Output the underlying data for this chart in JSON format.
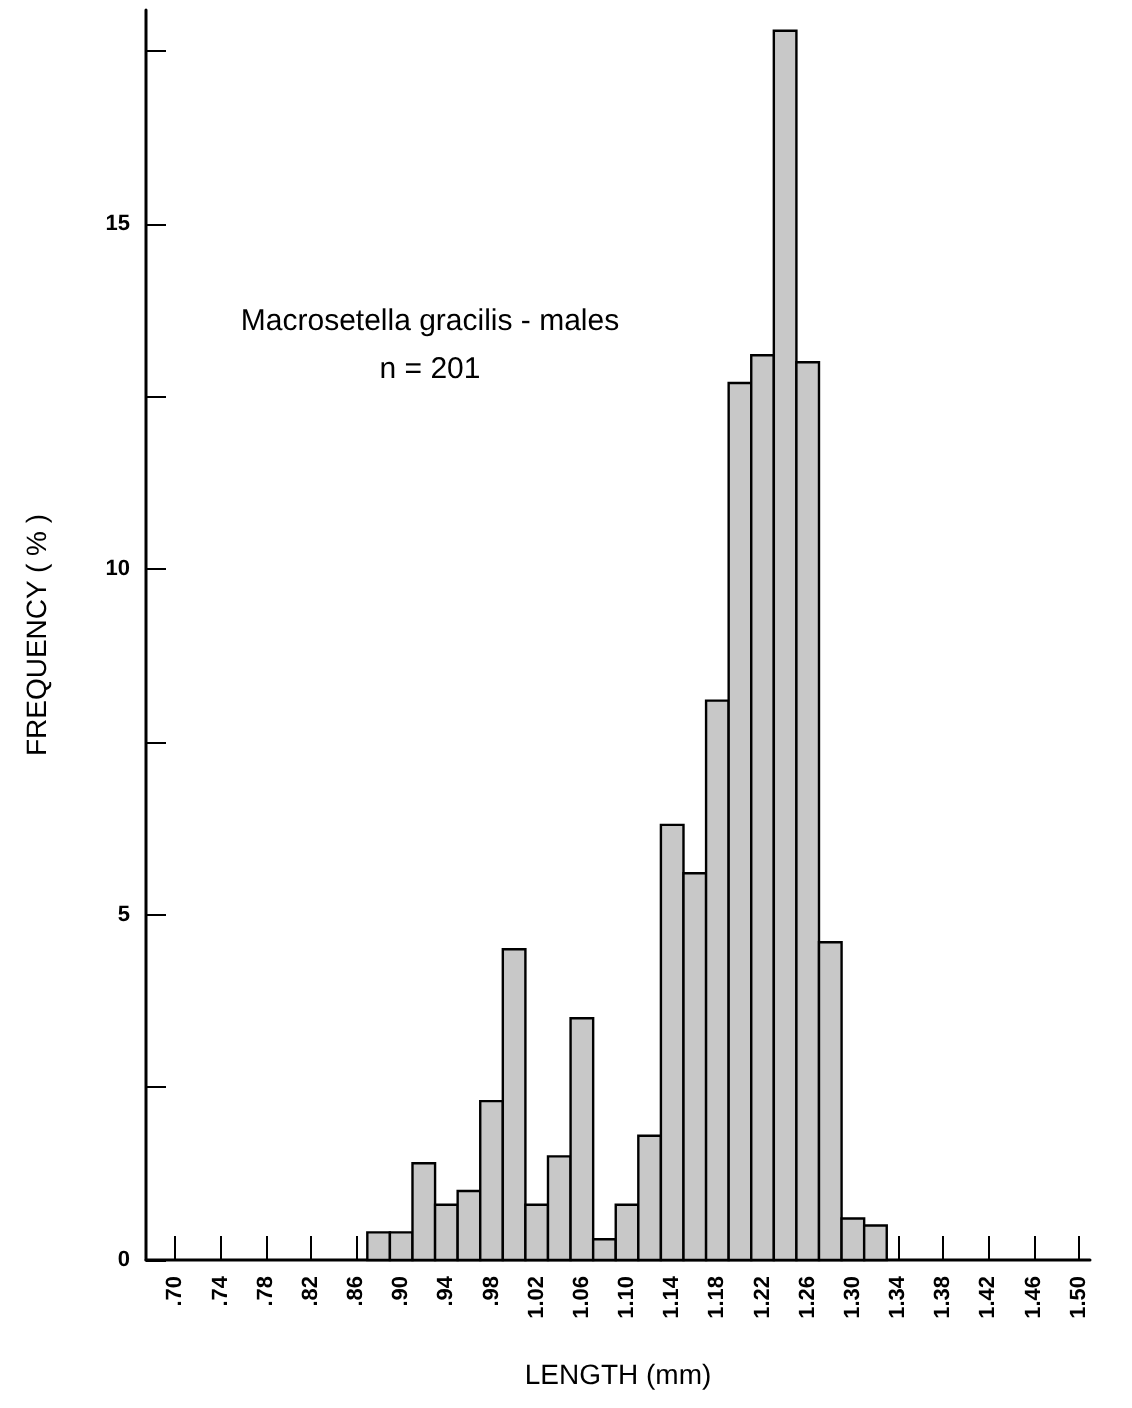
{
  "chart_data": {
    "type": "histogram",
    "title": "Macrosetella gracilis - males",
    "subtitle": "n = 201",
    "xlabel": "LENGTH (mm)",
    "ylabel": "FREQUENCY ( % )",
    "bins": [
      0.87,
      0.89,
      0.91,
      0.93,
      0.95,
      0.97,
      0.99,
      1.01,
      1.03,
      1.05,
      1.07,
      1.09,
      1.11,
      1.13,
      1.15,
      1.17,
      1.19,
      1.21,
      1.23,
      1.25,
      1.27,
      1.29,
      1.31,
      1.33
    ],
    "values": [
      0.4,
      0.4,
      1.4,
      0.8,
      1.0,
      2.3,
      4.5,
      0.8,
      1.5,
      3.5,
      0.3,
      0.8,
      1.8,
      6.3,
      5.6,
      8.1,
      12.7,
      13.1,
      17.8,
      13.0,
      4.6,
      0.6,
      0.5
    ],
    "color": "#c8c8c8",
    "xlim": [
      0.674,
      1.51
    ],
    "ylim": [
      0,
      18.1
    ],
    "xticks": [
      {
        "value": 0.7,
        "label": ".70"
      },
      {
        "value": 0.74,
        "label": ".74"
      },
      {
        "value": 0.78,
        "label": ".78"
      },
      {
        "value": 0.82,
        "label": ".82"
      },
      {
        "value": 0.86,
        "label": ".86"
      },
      {
        "value": 0.9,
        "label": ".90"
      },
      {
        "value": 0.94,
        "label": ".94"
      },
      {
        "value": 0.98,
        "label": ".98"
      },
      1.02,
      1.06,
      {
        "value": 1.1,
        "label": "1.10"
      },
      1.14,
      1.18,
      1.22,
      1.26,
      {
        "value": 1.3,
        "label": "1.30"
      },
      1.34,
      1.38,
      1.42,
      1.46,
      {
        "value": 1.5,
        "label": "1.50"
      }
    ],
    "yticks": [
      0,
      {
        "value": 2.5,
        "label": null
      },
      5,
      {
        "value": 7.5,
        "label": null
      },
      10,
      {
        "value": 12.5,
        "label": null
      },
      15,
      {
        "value": 17.5,
        "label": null
      }
    ],
    "grid": false
  }
}
